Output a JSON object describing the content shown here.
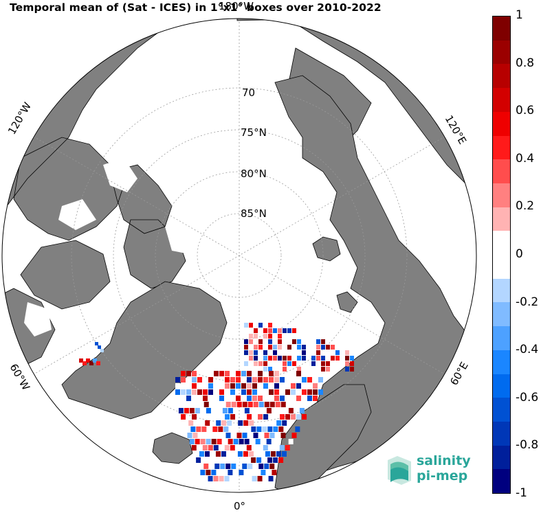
{
  "title": "Temporal mean of (Sat - ICES) in 1°x1° boxes over 2010-2022",
  "map": {
    "projection": "north-polar-stereographic",
    "meridian_labels": [
      "180°W",
      "120°W",
      "60°W",
      "0°",
      "60°E",
      "120°E"
    ],
    "parallel_labels": [
      "70",
      "75°N",
      "80°N",
      "85°N"
    ],
    "land_color": "#808080",
    "ocean_color": "#ffffff"
  },
  "colorbar": {
    "ticks": [
      "1",
      "0.8",
      "0.6",
      "0.4",
      "0.2",
      "0",
      "-0.2",
      "-0.4",
      "-0.6",
      "-0.8",
      "-1"
    ],
    "colors": [
      "#7f0000",
      "#9b0000",
      "#b70000",
      "#d30000",
      "#ef0000",
      "#ff1a1a",
      "#ff4d4d",
      "#ff8080",
      "#ffb3b3",
      "#ffffff",
      "#ffffff",
      "#b3d6ff",
      "#80bbff",
      "#4da1ff",
      "#1a86ff",
      "#006bef",
      "#0051d3",
      "#0037b7",
      "#001f9b",
      "#00007f"
    ],
    "range": [
      -1,
      1
    ]
  },
  "logo": {
    "line1": "salinity",
    "line2": "pi-mep"
  }
}
